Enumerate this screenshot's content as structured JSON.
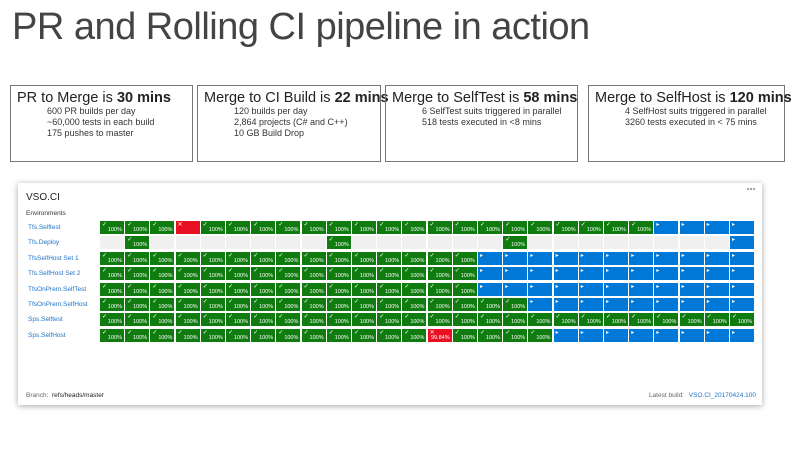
{
  "title": "PR and Rolling CI pipeline in action",
  "boxes": [
    {
      "heading": "PR to Merge is",
      "value": "30 mins",
      "lines": [
        "600 PR builds per day",
        "~60,000 tests in each build",
        "175 pushes to master"
      ]
    },
    {
      "heading": "Merge to CI Build is",
      "value": "22 mins",
      "lines": [
        "120 builds per day",
        "2,864 projects (C# and C++)",
        "10 GB Build Drop"
      ]
    },
    {
      "heading": "Merge to SelfTest is",
      "value": "58 mins",
      "lines": [
        "6 SelfTest suits triggered in parallel",
        "518 tests executed  in <8 mins"
      ]
    },
    {
      "heading": "Merge to SelfHost is",
      "value": "120 mins",
      "lines": [
        "4 SelfHost suits triggered in parallel",
        "3260 tests executed  in < 75 mins"
      ]
    }
  ],
  "dashboard": {
    "title": "VSO.CI",
    "section": "Environments",
    "status_colors": {
      "G": "#107c10",
      "R": "#e81123",
      "B": "#0078d7",
      "E": "#f0f0f0"
    },
    "rows": [
      {
        "name": "Tfs.Selftest",
        "statuses": "GGGRGGGGGGGGGGGGGGGGGGBBBB",
        "labels": [
          "100%",
          "100%",
          "100%",
          null,
          "100%",
          "100%",
          "100%",
          "100%",
          "100%",
          "100%",
          "100%",
          "100%",
          "100%",
          "100%",
          "100%",
          "100%",
          "100%",
          "100%",
          "100%",
          "100%",
          "100%",
          "100%",
          null,
          null,
          null,
          null
        ]
      },
      {
        "name": "Tfs.Deploy",
        "statuses": "EGEEEEEEEGEEEEEEGEEEEEEEEB",
        "labels": [
          null,
          "100%",
          null,
          null,
          null,
          null,
          null,
          null,
          null,
          "100%",
          null,
          null,
          null,
          null,
          null,
          null,
          "100%",
          null,
          null,
          null,
          null,
          null,
          null,
          null,
          null,
          null
        ]
      },
      {
        "name": "TfsSelfHost Set 1",
        "statuses": "GGGGGGGGGGGGGGGBBBBBBBBBBB",
        "labels": [
          "100%",
          "100%",
          "100%",
          "100%",
          "100%",
          "100%",
          "100%",
          "100%",
          "100%",
          "100%",
          "100%",
          "100%",
          "100%",
          "100%",
          "100%",
          null,
          null,
          null,
          null,
          null,
          null,
          null,
          null,
          null,
          null,
          null
        ]
      },
      {
        "name": "Tfs.SelfHost Set 2",
        "statuses": "GGGGGGGGGGGGGGGBBBBBBBBBBB",
        "labels": [
          "100%",
          "100%",
          "100%",
          "100%",
          "100%",
          "100%",
          "100%",
          "100%",
          "100%",
          "100%",
          "100%",
          "100%",
          "100%",
          "100%",
          "100%",
          null,
          null,
          null,
          null,
          null,
          null,
          null,
          null,
          null,
          null,
          null
        ]
      },
      {
        "name": "TfsOnPrem.SelfTest",
        "statuses": "GGGGGGGGGGGGGGGBBBBBBBBBBB",
        "labels": [
          "100%",
          "100%",
          "100%",
          "100%",
          "100%",
          "100%",
          "100%",
          "100%",
          "100%",
          "100%",
          "100%",
          "100%",
          "100%",
          "100%",
          "100%",
          null,
          null,
          null,
          null,
          null,
          null,
          null,
          null,
          null,
          null,
          null
        ]
      },
      {
        "name": "TfsOnPrem.SelfHost",
        "statuses": "GGGGGGGGGGGGGGGGGBBBBBBBBB",
        "labels": [
          "100%",
          "100%",
          "100%",
          "100%",
          "100%",
          "100%",
          "100%",
          "100%",
          "100%",
          "100%",
          "100%",
          "100%",
          "100%",
          "100%",
          "100%",
          "100%",
          "100%",
          null,
          null,
          null,
          null,
          null,
          null,
          null,
          null,
          null
        ]
      },
      {
        "name": "Sps.Selftest",
        "statuses": "GGGGGGGGGGGGGGGGGGGGGGGGGG",
        "labels": [
          "100%",
          "100%",
          "100%",
          "100%",
          "100%",
          "100%",
          "100%",
          "100%",
          "100%",
          "100%",
          "100%",
          "100%",
          "100%",
          "100%",
          "100%",
          "100%",
          "100%",
          "100%",
          "100%",
          "100%",
          "100%",
          "100%",
          "100%",
          "100%",
          "100%",
          "100%"
        ]
      },
      {
        "name": "Sps.SelfHost",
        "statuses": "GGGGGGGGGGGGGRGGGGBBBBBBBB",
        "labels": [
          "100%",
          "100%",
          "100%",
          "100%",
          "100%",
          "100%",
          "100%",
          "100%",
          "100%",
          "100%",
          "100%",
          "100%",
          "100%",
          "99.84%",
          "100%",
          "100%",
          "100%",
          "100%",
          null,
          null,
          null,
          null,
          null,
          null,
          null,
          null
        ]
      }
    ],
    "branch_label": "Branch:",
    "branch": "refs/heads/master",
    "latest_label": "Latest build:",
    "latest": "VSO.CI_20170424.100"
  }
}
